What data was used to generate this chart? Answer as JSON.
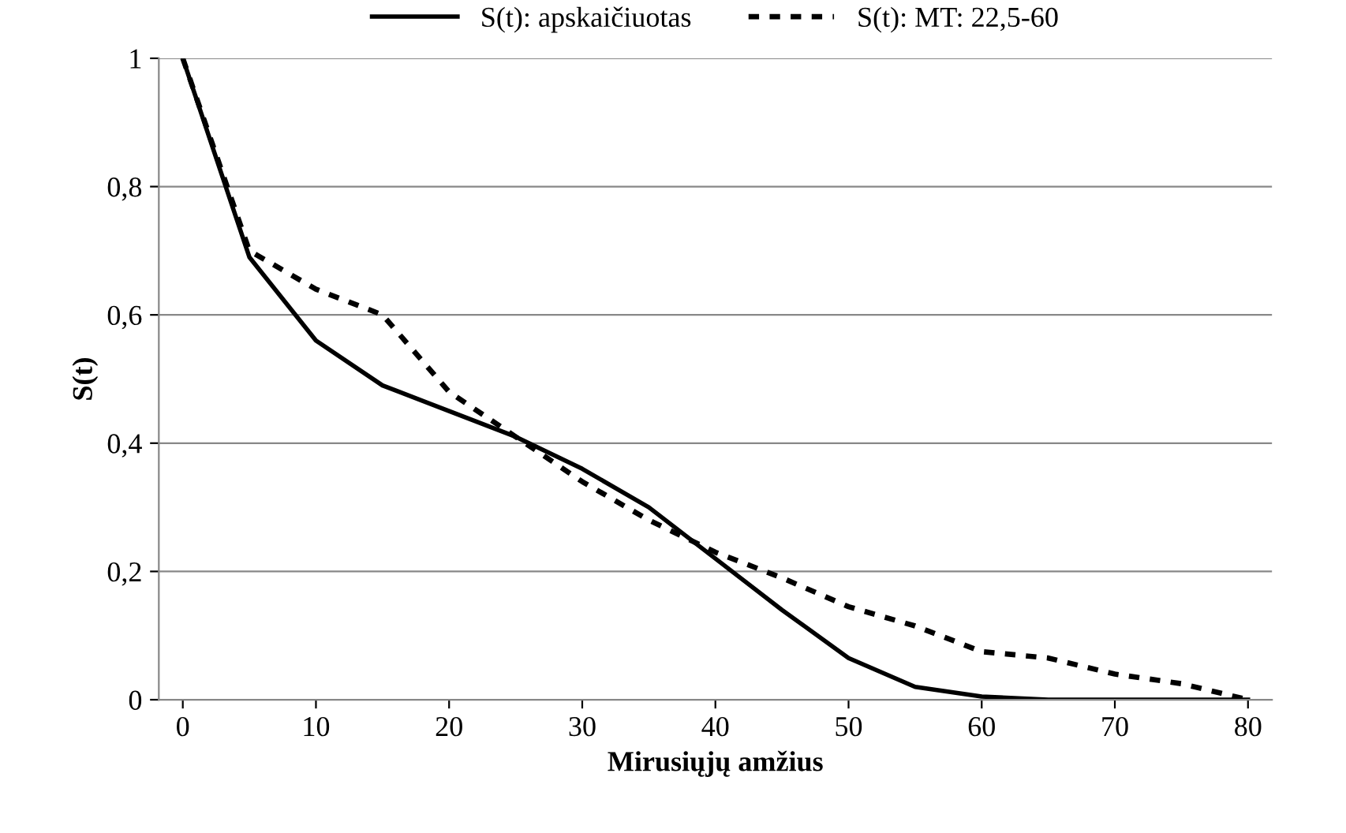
{
  "chart_data": {
    "type": "line",
    "xlabel": "Mirusiųjų amžius",
    "ylabel": "S(t)",
    "x": [
      0,
      5,
      10,
      15,
      20,
      25,
      30,
      35,
      40,
      45,
      50,
      55,
      60,
      65,
      70,
      75,
      80
    ],
    "series": [
      {
        "name": "S(t): apskaičiuotas",
        "color": "#000000",
        "line_style": "solid",
        "values": [
          1,
          0.69,
          0.56,
          0.49,
          0.45,
          0.41,
          0.36,
          0.3,
          0.22,
          0.14,
          0.065,
          0.02,
          0.005,
          0,
          0,
          0,
          0
        ]
      },
      {
        "name": "S(t): MT: 22,5-60",
        "color": "#000000",
        "line_style": "dotted",
        "values": [
          1,
          0.7,
          0.64,
          0.6,
          0.48,
          0.41,
          0.34,
          0.28,
          0.23,
          0.19,
          0.145,
          0.115,
          0.075,
          0.065,
          0.04,
          0.025,
          0
        ]
      }
    ],
    "xlim": [
      -1.8,
      81.8
    ],
    "xticks": [
      0,
      10,
      20,
      30,
      40,
      50,
      60,
      70,
      80
    ],
    "ylim": [
      0,
      1
    ],
    "yticks": [
      0,
      {
        "value": 0.2,
        "label": "0,2"
      },
      {
        "value": 0.4,
        "label": "0,4"
      },
      {
        "value": 0.6,
        "label": "0,6"
      },
      {
        "value": 0.8,
        "label": "0,8"
      },
      1
    ],
    "grid": "y",
    "legend": "top",
    "marker": "none"
  }
}
